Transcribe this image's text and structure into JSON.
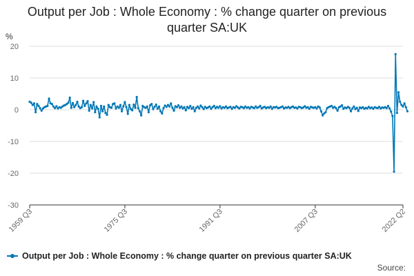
{
  "title": "Output per Job : Whole Economy : % change quarter on previous quarter SA:UK",
  "unit": "%",
  "source_label": "Source:",
  "colors": {
    "series": "#0077b6",
    "grid": "#dddddd",
    "axis": "#333333"
  },
  "chart_data": {
    "type": "line",
    "title": "Output per Job : Whole Economy : % change quarter on previous quarter SA:UK",
    "xlabel": "",
    "ylabel": "%",
    "x_ticks": [
      "1959 Q3",
      "1975 Q3",
      "1991 Q3",
      "2007 Q3",
      "2022 Q2"
    ],
    "y_ticks": [
      20,
      10,
      0,
      -10,
      -20,
      -30
    ],
    "ylim": [
      -30,
      20
    ],
    "x_range": [
      "1959 Q3",
      "2022 Q2"
    ],
    "grid": true,
    "legend_position": "bottom",
    "series": [
      {
        "name": "Output per Job : Whole Economy : % change quarter on previous quarter SA:UK",
        "start": "1959 Q3",
        "frequency": "quarterly",
        "values": [
          2.5,
          2.2,
          1.5,
          2.0,
          -0.8,
          1.8,
          1.2,
          0.5,
          -0.3,
          0.4,
          0.8,
          1.0,
          1.2,
          3.5,
          2.0,
          1.8,
          1.0,
          0.5,
          1.1,
          0.4,
          0.8,
          0.6,
          1.0,
          1.3,
          1.5,
          1.8,
          2.2,
          3.8,
          0.6,
          2.1,
          0.8,
          1.5,
          2.5,
          1.0,
          0.5,
          0.8,
          2.8,
          1.2,
          2.0,
          2.7,
          -0.3,
          1.5,
          0.4,
          2.4,
          -0.8,
          1.0,
          0.3,
          -2.4,
          1.2,
          -0.5,
          1.0,
          -1.0,
          -1.6,
          1.5,
          0.8,
          0.6,
          1.8,
          2.0,
          0.4,
          1.0,
          0.6,
          1.5,
          -0.5,
          1.1,
          2.4,
          0.8,
          -1.3,
          1.5,
          0.2,
          -0.2,
          1.6,
          0.6,
          4.0,
          0.5,
          -0.5,
          -1.8,
          1.2,
          0.8,
          0.6,
          1.0,
          -0.8,
          1.4,
          1.8,
          0.2,
          0.9,
          1.6,
          0.3,
          1.0,
          -0.5,
          -1.2,
          0.5,
          1.3,
          0.9,
          1.5,
          1.0,
          2.0,
          0.6,
          -0.3,
          1.1,
          0.8,
          1.4,
          0.6,
          1.0,
          0.4,
          0.8,
          -0.2,
          0.9,
          0.5,
          1.2,
          0.3,
          0.8,
          -0.5,
          0.6,
          1.0,
          0.4,
          1.3,
          0.8,
          0.2,
          0.9,
          0.5,
          0.7,
          1.0,
          0.3,
          0.8,
          1.2,
          0.5,
          0.9,
          0.6,
          1.1,
          0.4,
          0.8,
          0.6,
          1.0,
          0.5,
          0.7,
          0.9,
          0.3,
          0.8,
          0.6,
          1.1,
          0.7,
          0.4,
          0.9,
          0.8,
          0.5,
          1.0,
          0.6,
          0.8,
          0.4,
          0.9,
          0.7,
          0.5,
          1.0,
          0.6,
          0.8,
          1.2,
          0.4,
          0.7,
          0.9,
          0.5,
          0.8,
          0.6,
          1.0,
          0.3,
          0.8,
          0.7,
          0.9,
          0.5,
          0.6,
          0.8,
          1.0,
          0.4,
          0.7,
          0.6,
          0.9,
          0.5,
          0.8,
          1.0,
          0.6,
          0.7,
          0.4,
          0.9,
          0.8,
          0.5,
          0.7,
          1.1,
          0.6,
          0.8,
          0.3,
          0.9,
          0.7,
          0.6,
          0.8,
          0.4,
          1.0,
          0.7,
          -0.5,
          -1.8,
          -1.2,
          -0.8,
          0.5,
          0.8,
          1.0,
          1.2,
          0.6,
          0.9,
          0.5,
          -0.3,
          0.8,
          1.0,
          1.4,
          0.3,
          0.7,
          0.5,
          0.9,
          0.6,
          -0.5,
          0.4,
          1.0,
          0.2,
          0.6,
          -0.4,
          0.7,
          0.5,
          0.8,
          0.3,
          0.6,
          0.4,
          0.9,
          0.5,
          0.7,
          0.3,
          0.8,
          0.6,
          0.5,
          0.9,
          0.4,
          0.7,
          0.6,
          0.8,
          0.5,
          1.2,
          0.4,
          -0.6,
          -2.0,
          -19.5,
          17.5,
          -1.0,
          5.5,
          2.5,
          1.5,
          1.0,
          2.0,
          0.8,
          -0.5
        ]
      }
    ]
  }
}
